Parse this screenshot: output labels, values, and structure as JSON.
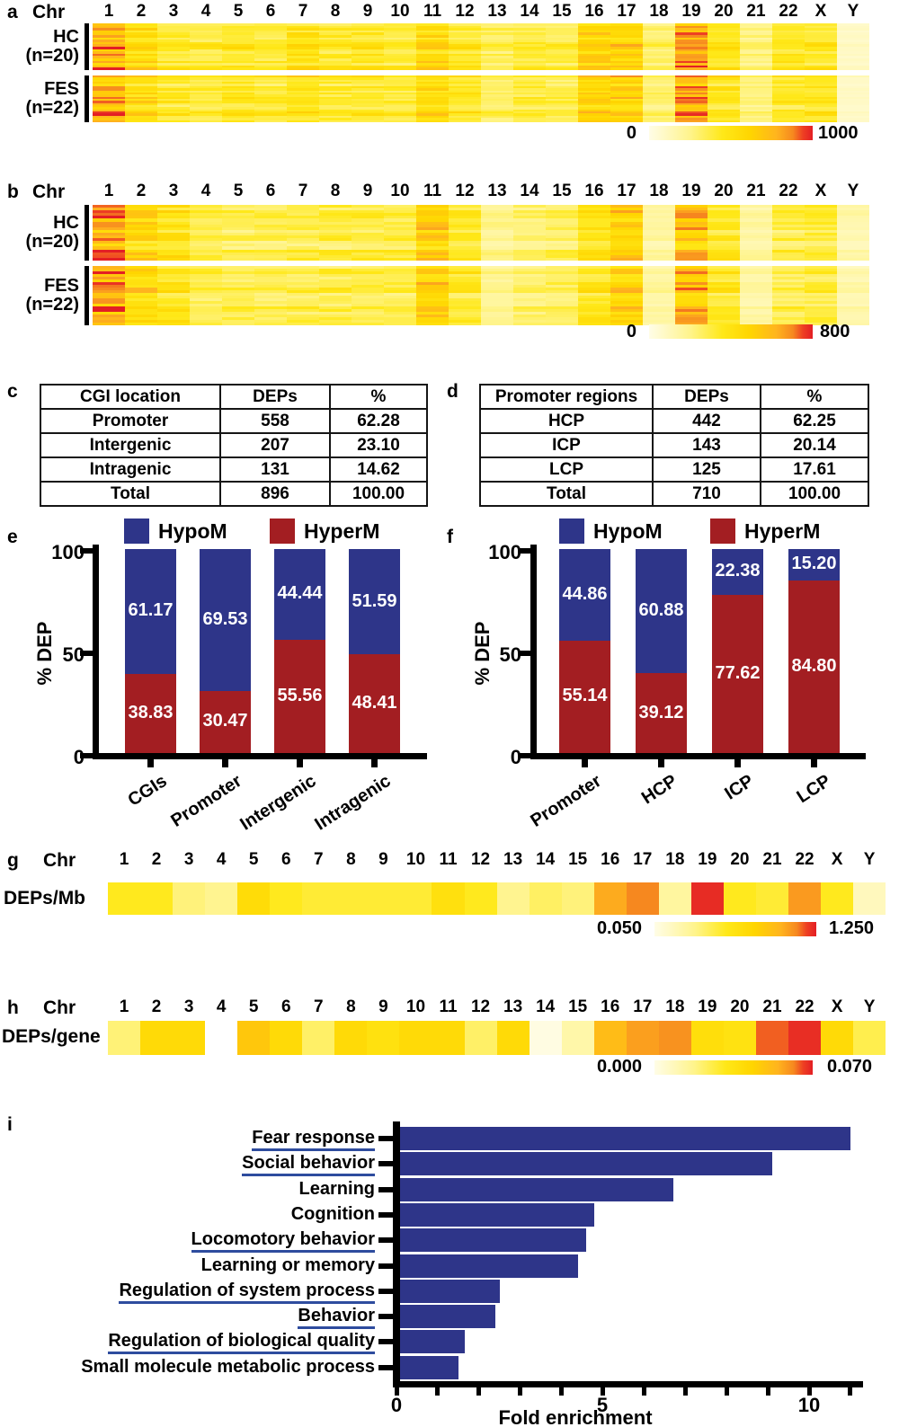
{
  "colors": {
    "navy": "#2E3589",
    "dark_red": "#A31E22",
    "underline": "#2E4C9E",
    "axis": "#000000"
  },
  "colormap": [
    [
      0.0,
      "#FFFDE7"
    ],
    [
      0.1,
      "#FFF9C4"
    ],
    [
      0.25,
      "#FFF48C"
    ],
    [
      0.45,
      "#FFE818"
    ],
    [
      0.62,
      "#FFD500"
    ],
    [
      0.78,
      "#FFB41E"
    ],
    [
      0.88,
      "#F6881F"
    ],
    [
      0.94,
      "#EE4023"
    ],
    [
      1.0,
      "#E31E24"
    ]
  ],
  "chart_data": [
    {
      "id": "a",
      "type": "heatmap",
      "title": "a",
      "row_header": "Chr",
      "categories": [
        "1",
        "2",
        "3",
        "4",
        "5",
        "6",
        "7",
        "8",
        "9",
        "10",
        "11",
        "12",
        "13",
        "14",
        "15",
        "16",
        "17",
        "18",
        "19",
        "20",
        "21",
        "22",
        "X",
        "Y"
      ],
      "groups": [
        {
          "name": "HC",
          "sub": "(n=20)",
          "rows": 20
        },
        {
          "name": "FES",
          "sub": "(n=22)",
          "rows": 22
        }
      ],
      "values_mean": [
        760,
        560,
        430,
        390,
        440,
        410,
        500,
        430,
        440,
        420,
        580,
        460,
        340,
        390,
        360,
        640,
        610,
        310,
        820,
        480,
        290,
        440,
        450,
        100
      ],
      "scale": {
        "min": 0,
        "max": 1000,
        "min_label": "0",
        "max_label": "1000"
      }
    },
    {
      "id": "b",
      "type": "heatmap",
      "title": "b",
      "row_header": "Chr",
      "categories": [
        "1",
        "2",
        "3",
        "4",
        "5",
        "6",
        "7",
        "8",
        "9",
        "10",
        "11",
        "12",
        "13",
        "14",
        "15",
        "16",
        "17",
        "18",
        "19",
        "20",
        "21",
        "22",
        "X",
        "Y"
      ],
      "groups": [
        {
          "name": "HC",
          "sub": "(n=20)",
          "rows": 20
        },
        {
          "name": "FES",
          "sub": "(n=22)",
          "rows": 22
        }
      ],
      "values_mean": [
        640,
        450,
        390,
        280,
        275,
        275,
        285,
        295,
        300,
        295,
        510,
        340,
        185,
        235,
        255,
        360,
        490,
        155,
        570,
        340,
        145,
        285,
        305,
        130
      ],
      "scale": {
        "min": 0,
        "max": 800,
        "min_label": "0",
        "max_label": "800"
      }
    },
    {
      "id": "c",
      "type": "table",
      "title": "c",
      "headers": [
        "CGI location",
        "DEPs",
        "%"
      ],
      "rows": [
        [
          "Promoter",
          "558",
          "62.28"
        ],
        [
          "Intergenic",
          "207",
          "23.10"
        ],
        [
          "Intragenic",
          "131",
          "14.62"
        ],
        [
          "Total",
          "896",
          "100.00"
        ]
      ]
    },
    {
      "id": "d",
      "type": "table",
      "title": "d",
      "headers": [
        "Promoter regions",
        "DEPs",
        "%"
      ],
      "rows": [
        [
          "HCP",
          "442",
          "62.25"
        ],
        [
          "ICP",
          "143",
          "20.14"
        ],
        [
          "LCP",
          "125",
          "17.61"
        ],
        [
          "Total",
          "710",
          "100.00"
        ]
      ]
    },
    {
      "id": "e",
      "type": "bar",
      "stacked": true,
      "title": "e",
      "ylabel": "% DEP",
      "ylim": [
        0,
        100
      ],
      "ytick_labels": [
        "100",
        "50",
        "0"
      ],
      "legend": [
        "HypoM",
        "HyperM"
      ],
      "categories": [
        "CGIs",
        "Promoter",
        "Intergenic",
        "Intragenic"
      ],
      "series": [
        {
          "name": "HyperM",
          "values": [
            38.83,
            30.47,
            55.56,
            48.41
          ]
        },
        {
          "name": "HypoM",
          "values": [
            61.17,
            69.53,
            44.44,
            51.59
          ]
        }
      ]
    },
    {
      "id": "f",
      "type": "bar",
      "stacked": true,
      "title": "f",
      "ylabel": "% DEP",
      "ylim": [
        0,
        100
      ],
      "ytick_labels": [
        "100",
        "50",
        "0"
      ],
      "legend": [
        "HypoM",
        "HyperM"
      ],
      "categories": [
        "Promoter",
        "HCP",
        "ICP",
        "LCP"
      ],
      "series": [
        {
          "name": "HyperM",
          "values": [
            55.14,
            39.12,
            77.62,
            84.8
          ]
        },
        {
          "name": "HypoM",
          "values": [
            44.86,
            60.88,
            22.38,
            15.2
          ]
        }
      ]
    },
    {
      "id": "g",
      "type": "heatmap",
      "title": "g",
      "row_header": "Chr",
      "row_label": "DEPs/Mb",
      "categories": [
        "1",
        "2",
        "3",
        "4",
        "5",
        "6",
        "7",
        "8",
        "9",
        "10",
        "11",
        "12",
        "13",
        "14",
        "15",
        "16",
        "17",
        "18",
        "19",
        "20",
        "21",
        "22",
        "X",
        "Y"
      ],
      "values": [
        0.55,
        0.55,
        0.35,
        0.3,
        0.7,
        0.55,
        0.5,
        0.5,
        0.5,
        0.5,
        0.65,
        0.55,
        0.3,
        0.4,
        0.35,
        1.0,
        1.1,
        0.25,
        1.22,
        0.55,
        0.5,
        1.05,
        0.55,
        0.15
      ],
      "scale": {
        "min": 0.05,
        "max": 1.25,
        "min_label": "0.050",
        "max_label": "1.250"
      }
    },
    {
      "id": "h",
      "type": "heatmap",
      "title": "h",
      "row_header": "Chr",
      "row_label": "DEPs/gene",
      "categories": [
        "1",
        "2",
        "3",
        "4",
        "5",
        "6",
        "7",
        "8",
        "9",
        "10",
        "11",
        "12",
        "13",
        "14",
        "15",
        "16",
        "17",
        "18",
        "19",
        "20",
        "21",
        "22",
        "X",
        "Y"
      ],
      "values": [
        0.02,
        0.04,
        0.04,
        null,
        0.048,
        0.04,
        0.022,
        0.04,
        0.036,
        0.04,
        0.04,
        0.022,
        0.04,
        0.001,
        0.012,
        0.052,
        0.058,
        0.06,
        0.038,
        0.035,
        0.064,
        0.068,
        0.04,
        0.025
      ],
      "scale": {
        "min": 0.0,
        "max": 0.07,
        "min_label": "0.000",
        "max_label": "0.070"
      }
    },
    {
      "id": "i",
      "type": "bar",
      "orientation": "horizontal",
      "title": "i",
      "xlabel": "Fold enrichment",
      "xlim": [
        0,
        11.25
      ],
      "xtick_labels": [
        "0",
        "5",
        "10"
      ],
      "xticks_major": [
        0,
        5,
        10
      ],
      "xticks_all": [
        0,
        1,
        2,
        3,
        4,
        5,
        6,
        7,
        8,
        9,
        10,
        11
      ],
      "categories": [
        "Fear response",
        "Social behavior",
        "Learning",
        "Cognition",
        "Locomotory behavior",
        "Learning or memory",
        "Regulation of system process",
        "Behavior",
        "Regulation of biological quality",
        "Small molecule metabolic process"
      ],
      "values": [
        11.0,
        9.1,
        6.7,
        4.8,
        4.6,
        4.4,
        2.5,
        2.4,
        1.65,
        1.5
      ],
      "underlined": [
        true,
        true,
        false,
        false,
        true,
        false,
        true,
        true,
        true,
        false
      ]
    }
  ]
}
